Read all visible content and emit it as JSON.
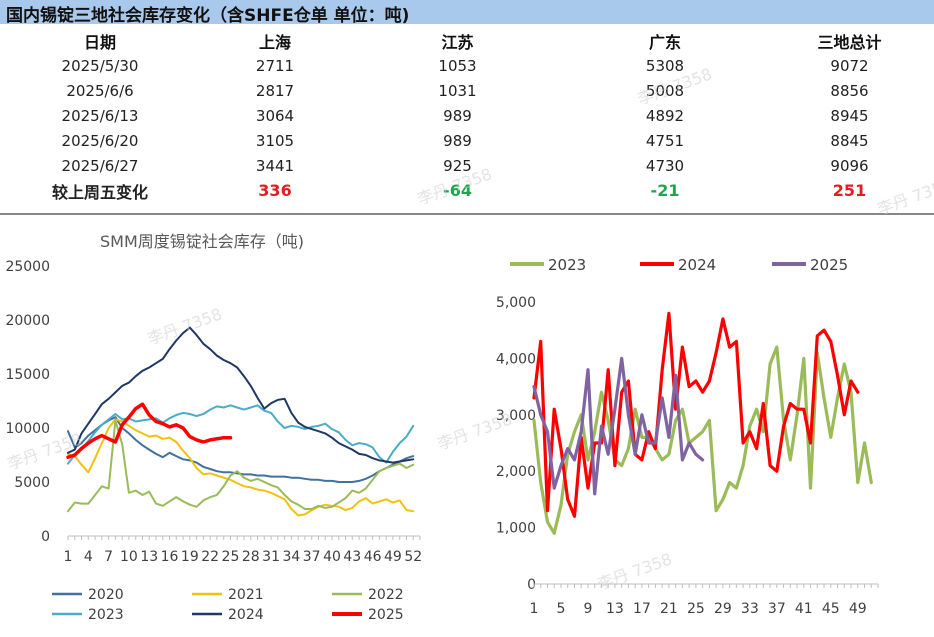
{
  "header": {
    "title": "国内锡锭三地社会库存变化（含SHFE仓单 单位：吨)"
  },
  "table": {
    "columns": [
      "日期",
      "上海",
      "江苏",
      "广东",
      "三地总计"
    ],
    "rows": [
      [
        "2025/5/30",
        "2711",
        "1053",
        "5308",
        "9072"
      ],
      [
        "2025/6/6",
        "2817",
        "1031",
        "5008",
        "8856"
      ],
      [
        "2025/6/13",
        "3064",
        "989",
        "4892",
        "8945"
      ],
      [
        "2025/6/20",
        "3105",
        "989",
        "4751",
        "8845"
      ],
      [
        "2025/6/27",
        "3441",
        "925",
        "4730",
        "9096"
      ]
    ],
    "change_row": {
      "label": "较上周五变化",
      "values": [
        "336",
        "-64",
        "-21",
        "251"
      ],
      "colors": [
        "#e02020",
        "#1aa84c",
        "#1aa84c",
        "#e02020"
      ]
    }
  },
  "watermark": "李丹 7358",
  "chart_data": [
    {
      "type": "line",
      "title": "SMM周度锡锭社会库存（吨)",
      "xlabel": "",
      "ylabel": "",
      "xlim": [
        1,
        53
      ],
      "ylim": [
        0,
        25000
      ],
      "x_ticks": [
        1,
        4,
        7,
        10,
        13,
        16,
        19,
        22,
        25,
        28,
        31,
        34,
        37,
        40,
        43,
        46,
        49,
        52
      ],
      "y_ticks": [
        0,
        5000,
        10000,
        15000,
        20000,
        25000
      ],
      "grid": false,
      "legend_position": "bottom",
      "series": [
        {
          "name": "2020",
          "color": "#41719c",
          "values": [
            9700,
            8200,
            8600,
            9300,
            9800,
            10300,
            10700,
            11000,
            10000,
            9500,
            8900,
            8400,
            8000,
            7600,
            7300,
            7700,
            7400,
            7100,
            7000,
            6800,
            6400,
            6200,
            6000,
            5900,
            5900,
            5800,
            5700,
            5700,
            5600,
            5600,
            5500,
            5500,
            5500,
            5400,
            5400,
            5300,
            5200,
            5200,
            5100,
            5100,
            5000,
            5000,
            5000,
            5100,
            5300,
            5600,
            6000,
            6300,
            6600,
            6900,
            7200,
            7400
          ]
        },
        {
          "name": "2021",
          "color": "#f2c10f",
          "values": [
            7600,
            7400,
            6600,
            5900,
            7200,
            8600,
            10000,
            10800,
            10600,
            10200,
            9800,
            9500,
            9200,
            9300,
            9000,
            9100,
            8700,
            7900,
            7200,
            6300,
            5700,
            5800,
            5600,
            5400,
            5200,
            4900,
            4600,
            4500,
            4300,
            4200,
            4000,
            3700,
            3400,
            2500,
            1900,
            2000,
            2400,
            2700,
            2900,
            2800,
            2700,
            2400,
            2600,
            3200,
            3500,
            3000,
            3200,
            3400,
            3100,
            3300,
            2400,
            2300
          ]
        },
        {
          "name": "2022",
          "color": "#9bbb59",
          "values": [
            2300,
            3100,
            3000,
            3000,
            3800,
            4600,
            4400,
            10700,
            8500,
            4000,
            4200,
            3800,
            4100,
            3000,
            2800,
            3200,
            3600,
            3200,
            2900,
            2700,
            3300,
            3600,
            3800,
            4600,
            5600,
            6000,
            5400,
            5100,
            5300,
            5000,
            4700,
            4500,
            3800,
            3200,
            2900,
            2500,
            2500,
            2800,
            2600,
            2700,
            3100,
            3500,
            4200,
            4000,
            4400,
            5200,
            6000,
            6300,
            6500,
            6700,
            6300,
            6600
          ]
        },
        {
          "name": "2023",
          "color": "#4bacc6",
          "values": [
            6700,
            7500,
            8000,
            8800,
            9600,
            10300,
            10800,
            11300,
            10800,
            10900,
            10600,
            10700,
            10800,
            10900,
            10500,
            10900,
            11200,
            11400,
            11300,
            11100,
            11300,
            11700,
            12000,
            11900,
            12100,
            11900,
            11700,
            11900,
            12100,
            11600,
            11400,
            10600,
            10000,
            10200,
            10100,
            9900,
            10100,
            10200,
            10400,
            9900,
            9600,
            8900,
            8400,
            8600,
            8500,
            8200,
            7300,
            6800,
            7800,
            8600,
            9200,
            10200
          ]
        },
        {
          "name": "2024",
          "color": "#203864",
          "values": [
            7700,
            8000,
            9500,
            10400,
            11300,
            12200,
            12700,
            13300,
            13900,
            14200,
            14800,
            15300,
            15600,
            16000,
            16400,
            17300,
            18100,
            18800,
            19300,
            18600,
            17800,
            17300,
            16700,
            16300,
            16000,
            15600,
            14800,
            13900,
            12800,
            11800,
            12300,
            12600,
            12700,
            11400,
            10500,
            10100,
            9900,
            9700,
            9500,
            9100,
            8600,
            8300,
            8000,
            7600,
            7500,
            7200,
            7000,
            6900,
            6800,
            6900,
            7000,
            7100
          ]
        },
        {
          "name": "2025",
          "color": "#ff0000",
          "values": [
            7300,
            7500,
            8100,
            8600,
            9000,
            9300,
            9000,
            8700,
            10300,
            11000,
            11800,
            12200,
            11200,
            10600,
            10400,
            10100,
            10300,
            10000,
            9200,
            8900,
            8700,
            8900,
            9000,
            9100,
            9100
          ]
        }
      ]
    },
    {
      "type": "line",
      "title": "",
      "xlabel": "",
      "ylabel": "",
      "xlim": [
        1,
        52
      ],
      "ylim": [
        0,
        5000
      ],
      "x_ticks": [
        1,
        5,
        9,
        13,
        17,
        21,
        25,
        29,
        33,
        37,
        41,
        45,
        49
      ],
      "y_ticks": [
        0,
        1000,
        2000,
        3000,
        4000,
        5000
      ],
      "y_tick_labels": [
        "0",
        "1,000",
        "2,000",
        "3,000",
        "4,000",
        "5,000"
      ],
      "grid": false,
      "legend_position": "top",
      "series": [
        {
          "name": "2023",
          "color": "#9bbb59",
          "values": [
            2900,
            1800,
            1100,
            900,
            1400,
            2300,
            2700,
            3000,
            2200,
            2700,
            3400,
            2900,
            2200,
            2100,
            2400,
            3100,
            2600,
            2600,
            2400,
            2200,
            2300,
            2900,
            3100,
            2500,
            2600,
            2700,
            2900,
            1300,
            1500,
            1800,
            1700,
            2100,
            2800,
            3100,
            2700,
            3900,
            4200,
            2900,
            2200,
            3000,
            4000,
            1700,
            4100,
            3300,
            2600,
            3300,
            3900,
            3400,
            1800,
            2500,
            1800
          ]
        },
        {
          "name": "2024",
          "color": "#ff0000",
          "values": [
            3300,
            4300,
            1300,
            3100,
            2400,
            1500,
            1200,
            2600,
            1700,
            2500,
            2500,
            3800,
            2100,
            3400,
            3600,
            2300,
            2200,
            2700,
            2400,
            3800,
            4800,
            3100,
            4200,
            3500,
            3600,
            3400,
            3600,
            4100,
            4700,
            4200,
            4300,
            2500,
            2700,
            2400,
            3200,
            2100,
            2000,
            2800,
            3200,
            3100,
            3100,
            2500,
            4400,
            4500,
            4300,
            3700,
            3000,
            3600,
            3400
          ]
        },
        {
          "name": "2025",
          "color": "#8064a2",
          "values": [
            3500,
            3000,
            2700,
            1700,
            2100,
            2400,
            2200,
            2700,
            3800,
            1600,
            2800,
            2300,
            3100,
            4000,
            3000,
            2300,
            3000,
            2500,
            2500,
            3300,
            2600,
            3700,
            2200,
            2500,
            2300,
            2200
          ]
        }
      ]
    }
  ]
}
